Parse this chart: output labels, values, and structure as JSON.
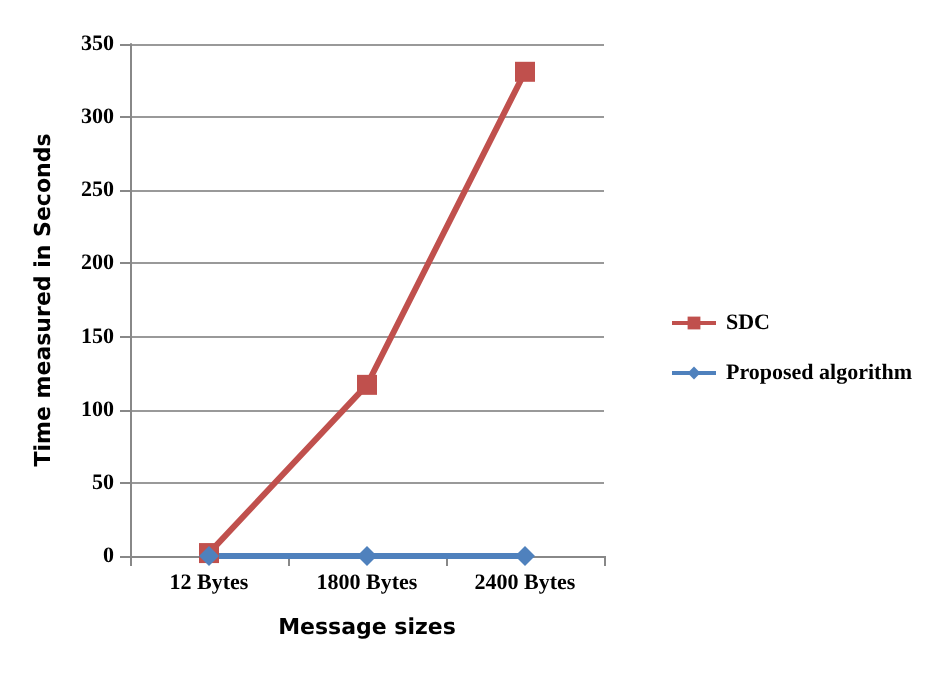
{
  "chart_data": {
    "type": "line",
    "xlabel": "Message sizes",
    "ylabel": "Time measured in Seconds",
    "categories": [
      "12 Bytes",
      "1800 Bytes",
      "2400 Bytes"
    ],
    "series": [
      {
        "name": "SDC",
        "color": "#c0504d",
        "marker": "square",
        "values": [
          2,
          117,
          331
        ]
      },
      {
        "name": "Proposed algorithm",
        "color": "#4f81bd",
        "marker": "diamond",
        "values": [
          0,
          0,
          0
        ]
      }
    ],
    "ylim": [
      0,
      350
    ],
    "yticks": [
      0,
      50,
      100,
      150,
      200,
      250,
      300,
      350
    ],
    "grid": "y",
    "legend": "right",
    "line_style": "solid"
  }
}
